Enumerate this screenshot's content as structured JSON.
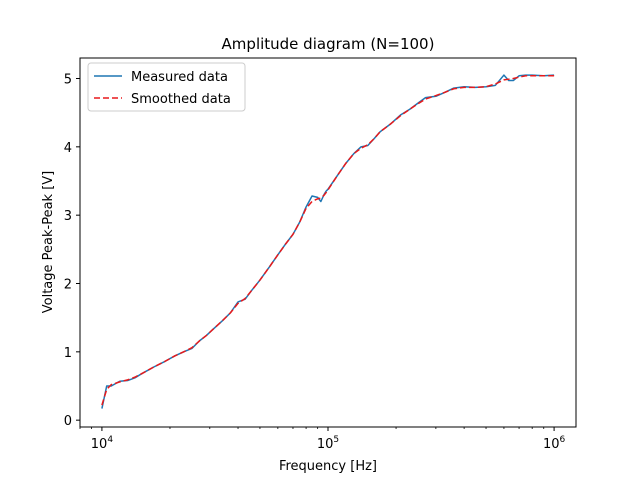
{
  "chart_data": {
    "type": "line",
    "title": "Amplitude diagram (N=100)",
    "xlabel": "Frequency [Hz]",
    "ylabel": "Voltage Peak-Peak [V]",
    "xscale": "log",
    "xlim": [
      8000,
      1250000
    ],
    "ylim": [
      -0.1,
      5.3
    ],
    "xticks": [
      {
        "value": 10000,
        "base": "10",
        "exp": "4"
      },
      {
        "value": 100000,
        "base": "10",
        "exp": "5"
      },
      {
        "value": 1000000,
        "base": "10",
        "exp": "6"
      }
    ],
    "yticks": [
      0,
      1,
      2,
      3,
      4,
      5
    ],
    "grid": false,
    "legend_position": "upper-left",
    "series": [
      {
        "name": "Measured data",
        "color": "#1f77b4",
        "style": "solid",
        "x": [
          10000,
          10500,
          11000,
          12000,
          13000,
          14000,
          15000,
          17000,
          19000,
          21000,
          23000,
          25000,
          27000,
          29000,
          31000,
          34000,
          37000,
          40000,
          43000,
          46000,
          50000,
          55000,
          60000,
          65000,
          70000,
          75000,
          80000,
          85000,
          90000,
          93000,
          96000,
          98000,
          100000,
          110000,
          120000,
          130000,
          140000,
          150000,
          160000,
          170000,
          190000,
          210000,
          230000,
          250000,
          270000,
          300000,
          330000,
          360000,
          400000,
          450000,
          500000,
          550000,
          600000,
          630000,
          660000,
          700000,
          750000,
          800000,
          900000,
          1000000
        ],
        "y": [
          0.17,
          0.5,
          0.5,
          0.57,
          0.58,
          0.62,
          0.68,
          0.78,
          0.86,
          0.94,
          1.0,
          1.05,
          1.16,
          1.24,
          1.33,
          1.45,
          1.57,
          1.73,
          1.77,
          1.9,
          2.05,
          2.24,
          2.42,
          2.58,
          2.72,
          2.9,
          3.12,
          3.28,
          3.26,
          3.2,
          3.3,
          3.35,
          3.38,
          3.58,
          3.76,
          3.9,
          4.0,
          4.02,
          4.12,
          4.22,
          4.34,
          4.47,
          4.55,
          4.64,
          4.72,
          4.74,
          4.8,
          4.86,
          4.88,
          4.87,
          4.88,
          4.9,
          5.05,
          4.97,
          4.97,
          5.04,
          5.05,
          5.05,
          5.04,
          5.05
        ]
      },
      {
        "name": "Smoothed data",
        "color": "#e8191b",
        "style": "dashed",
        "x": [
          10000,
          10500,
          11000,
          12000,
          13000,
          14000,
          15000,
          17000,
          19000,
          21000,
          23000,
          25000,
          27000,
          29000,
          31000,
          34000,
          37000,
          40000,
          43000,
          46000,
          50000,
          55000,
          60000,
          65000,
          70000,
          75000,
          80000,
          85000,
          90000,
          93000,
          96000,
          98000,
          100000,
          110000,
          120000,
          130000,
          140000,
          150000,
          160000,
          170000,
          190000,
          210000,
          230000,
          250000,
          270000,
          300000,
          330000,
          360000,
          400000,
          450000,
          500000,
          550000,
          600000,
          630000,
          660000,
          700000,
          750000,
          800000,
          900000,
          1000000
        ],
        "y": [
          0.22,
          0.45,
          0.52,
          0.56,
          0.59,
          0.63,
          0.68,
          0.78,
          0.86,
          0.94,
          1.0,
          1.06,
          1.16,
          1.24,
          1.33,
          1.45,
          1.57,
          1.71,
          1.78,
          1.9,
          2.05,
          2.24,
          2.42,
          2.58,
          2.72,
          2.9,
          3.1,
          3.2,
          3.24,
          3.25,
          3.29,
          3.33,
          3.37,
          3.58,
          3.76,
          3.9,
          3.98,
          4.03,
          4.12,
          4.22,
          4.34,
          4.46,
          4.55,
          4.63,
          4.7,
          4.75,
          4.8,
          4.85,
          4.87,
          4.87,
          4.88,
          4.92,
          4.98,
          4.99,
          5.0,
          5.02,
          5.04,
          5.04,
          5.04,
          5.04
        ]
      }
    ]
  }
}
